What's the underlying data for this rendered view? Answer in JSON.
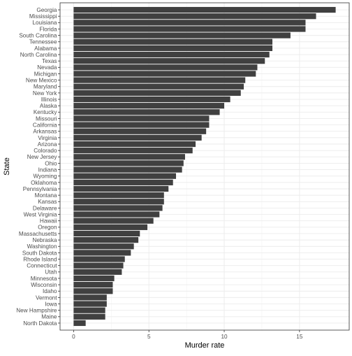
{
  "chart_data": {
    "type": "bar",
    "orientation": "horizontal",
    "xlabel": "Murder rate",
    "ylabel": "State",
    "xlim": [
      -0.9,
      18.3
    ],
    "x_ticks": [
      0,
      5,
      10,
      15
    ],
    "grid": true,
    "theme": "bw",
    "bar_color": "#404040",
    "categories": [
      "Georgia",
      "Mississippi",
      "Louisiana",
      "Florida",
      "South Carolina",
      "Tennessee",
      "Alabama",
      "North Carolina",
      "Texas",
      "Nevada",
      "Michigan",
      "New Mexico",
      "Maryland",
      "New York",
      "Illinois",
      "Alaska",
      "Kentucky",
      "Missouri",
      "California",
      "Arkansas",
      "Virginia",
      "Arizona",
      "Colorado",
      "New Jersey",
      "Ohio",
      "Indiana",
      "Wyoming",
      "Oklahoma",
      "Pennsylvania",
      "Montana",
      "Kansas",
      "Delaware",
      "West Virginia",
      "Hawaii",
      "Oregon",
      "Massachusetts",
      "Nebraska",
      "Washington",
      "South Dakota",
      "Rhode Island",
      "Connecticut",
      "Utah",
      "Minnesota",
      "Wisconsin",
      "Idaho",
      "Vermont",
      "Iowa",
      "New Hampshire",
      "Maine",
      "North Dakota"
    ],
    "values": [
      17.4,
      16.1,
      15.4,
      15.4,
      14.4,
      13.2,
      13.2,
      13.0,
      12.7,
      12.2,
      12.1,
      11.4,
      11.3,
      11.1,
      10.4,
      10.0,
      9.7,
      9.0,
      9.0,
      8.8,
      8.5,
      8.1,
      7.9,
      7.4,
      7.3,
      7.2,
      6.8,
      6.6,
      6.3,
      6.0,
      6.0,
      5.9,
      5.7,
      5.3,
      4.9,
      4.4,
      4.3,
      4.0,
      3.8,
      3.4,
      3.3,
      3.2,
      2.7,
      2.6,
      2.6,
      2.2,
      2.2,
      2.1,
      2.1,
      0.8
    ]
  }
}
